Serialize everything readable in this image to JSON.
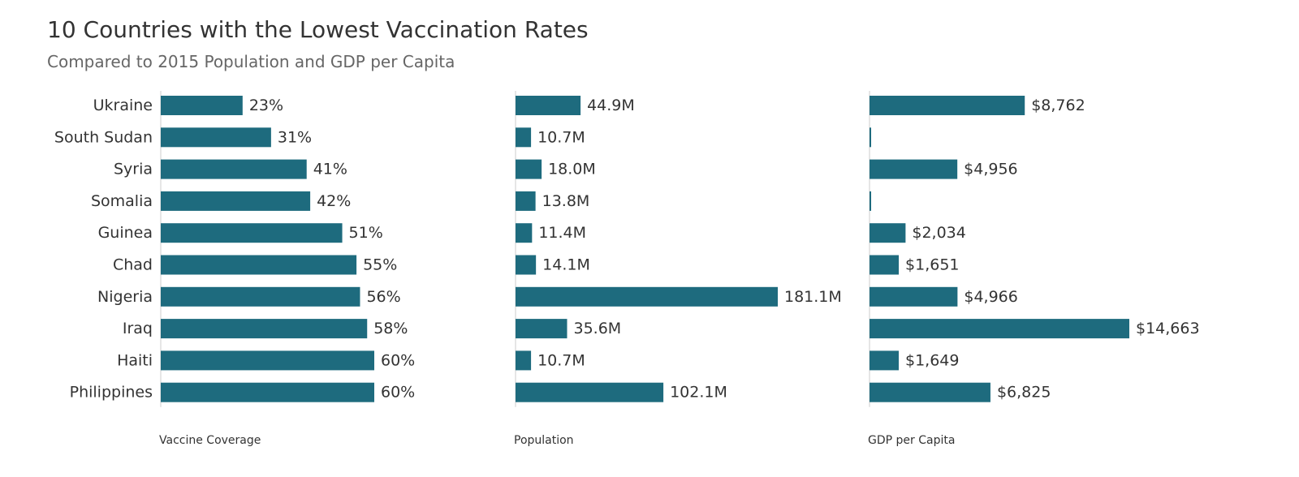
{
  "title": "10 Countries with the Lowest Vaccination Rates",
  "subtitle": "Compared to 2015 Population and GDP per Capita",
  "colors": {
    "bar": "#1e6b7e",
    "axis": "#cccccc"
  },
  "chart_data": {
    "type": "bar",
    "orientation": "horizontal",
    "categories": [
      "Ukraine",
      "South Sudan",
      "Syria",
      "Somalia",
      "Guinea",
      "Chad",
      "Nigeria",
      "Iraq",
      "Haiti",
      "Philippines"
    ],
    "panels": [
      {
        "name": "Vaccine Coverage",
        "values": [
          23,
          31,
          41,
          42,
          51,
          55,
          56,
          58,
          60,
          60
        ],
        "labels": [
          "23%",
          "31%",
          "41%",
          "42%",
          "51%",
          "55%",
          "56%",
          "58%",
          "60%",
          "60%"
        ],
        "xlim": [
          0,
          60
        ]
      },
      {
        "name": "Population",
        "values": [
          44.9,
          10.7,
          18.0,
          13.8,
          11.4,
          14.1,
          181.1,
          35.6,
          10.7,
          102.1
        ],
        "labels": [
          "44.9M",
          "10.7M",
          "18.0M",
          "13.8M",
          "11.4M",
          "14.1M",
          "181.1M",
          "35.6M",
          "10.7M",
          "102.1M"
        ],
        "xlim": [
          0,
          181.1
        ]
      },
      {
        "name": "GDP per Capita",
        "values": [
          8762,
          null,
          4956,
          null,
          2034,
          1651,
          4966,
          14663,
          1649,
          6825
        ],
        "labels": [
          "$8,762",
          "",
          "$4,956",
          "",
          "$2,034",
          "$1,651",
          "$4,966",
          "$14,663",
          "$1,649",
          "$6,825"
        ],
        "xlim": [
          0,
          14663
        ]
      }
    ]
  }
}
